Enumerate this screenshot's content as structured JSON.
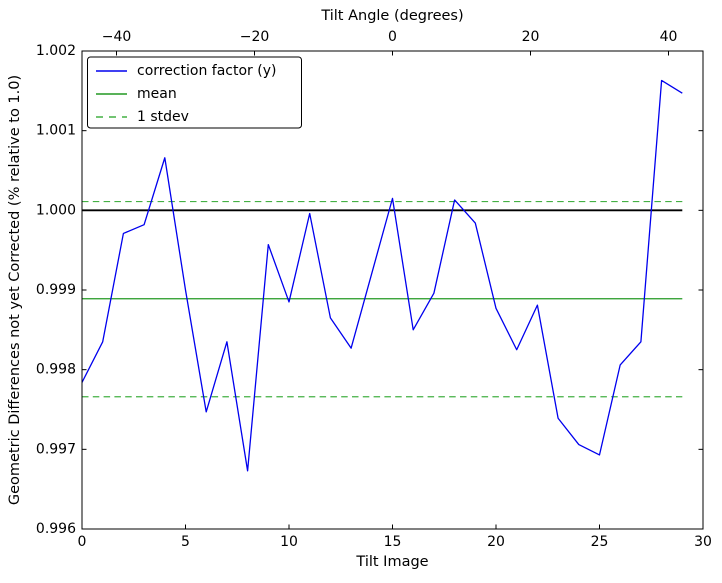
{
  "chart_data": {
    "type": "line",
    "top_axis_label": "Tilt Angle (degrees)",
    "xlabel": "Tilt Image",
    "ylabel": "Geometric Differences not yet Corrected (% relative to 1.0)",
    "xlim": [
      0,
      30
    ],
    "ylim": [
      0.996,
      1.002
    ],
    "grid": false,
    "x_ticks": [
      {
        "label": "0",
        "v": 0
      },
      {
        "label": "5",
        "v": 5
      },
      {
        "label": "10",
        "v": 10
      },
      {
        "label": "15",
        "v": 15
      },
      {
        "label": "20",
        "v": 20
      },
      {
        "label": "25",
        "v": 25
      },
      {
        "label": "30",
        "v": 30
      }
    ],
    "y_ticks": [
      {
        "label": "0.996",
        "v": 0.996
      },
      {
        "label": "0.997",
        "v": 0.997
      },
      {
        "label": "0.998",
        "v": 0.998
      },
      {
        "label": "0.999",
        "v": 0.999
      },
      {
        "label": "1.000",
        "v": 1.0
      },
      {
        "label": "1.001",
        "v": 1.001
      },
      {
        "label": "1.002",
        "v": 1.002
      }
    ],
    "top_ticks": [
      {
        "label": "−40",
        "x_image": 1.6667
      },
      {
        "label": "−20",
        "x_image": 8.3333
      },
      {
        "label": "0",
        "x_image": 15.0
      },
      {
        "label": "20",
        "x_image": 21.6667
      },
      {
        "label": "40",
        "x_image": 28.3333
      }
    ],
    "series": [
      {
        "name": "correction factor (y)",
        "color": "#0000ee",
        "style": "solid",
        "x": [
          0,
          1,
          2,
          3,
          4,
          5,
          6,
          7,
          8,
          9,
          10,
          11,
          12,
          13,
          14,
          15,
          16,
          17,
          18,
          19,
          20,
          21,
          22,
          23,
          24,
          25,
          26,
          27,
          28,
          29
        ],
        "y": [
          0.99784,
          0.99835,
          0.99971,
          0.99982,
          1.00066,
          0.999,
          0.99747,
          0.99835,
          0.99673,
          0.99957,
          0.99885,
          0.99996,
          0.99865,
          0.99827,
          0.99921,
          1.00015,
          0.9985,
          0.99896,
          1.00013,
          0.99984,
          0.99877,
          0.99825,
          0.99881,
          0.99739,
          0.99706,
          0.99693,
          0.99806,
          0.99835,
          1.00163,
          1.00147
        ]
      },
      {
        "name": "mean",
        "color": "#229922",
        "style": "solid",
        "y_value": 0.99889,
        "x_range": [
          0,
          29
        ]
      },
      {
        "name": "1 stdev",
        "color": "#44b044",
        "style": "dashed",
        "y_values": [
          1.00011,
          0.99766
        ],
        "x_range": [
          0,
          29
        ]
      }
    ],
    "reference_line": {
      "color": "#000000",
      "y_value": 1.0,
      "x_range": [
        0,
        29
      ]
    },
    "legend": {
      "position": "upper left",
      "entries": [
        "correction factor (y)",
        "mean",
        "1 stdev"
      ]
    }
  }
}
